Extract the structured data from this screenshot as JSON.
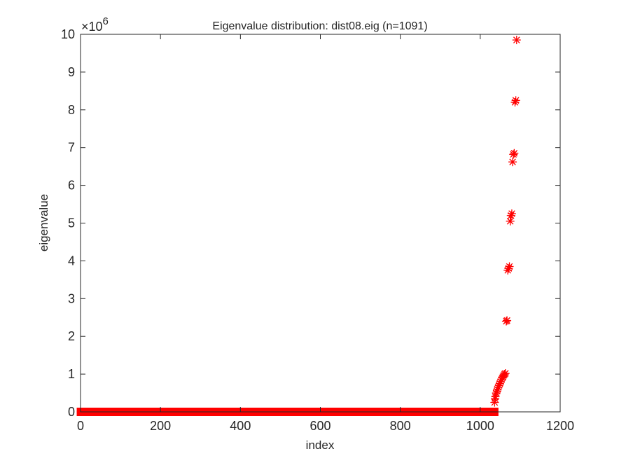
{
  "chart_data": {
    "type": "scatter",
    "title": "Eigenvalue distribution: dist08.eig (n=1091)",
    "xlabel": "index",
    "ylabel": "eigenvalue",
    "xlim": [
      0,
      1200
    ],
    "ylim": [
      0,
      10
    ],
    "x_ticks": [
      0,
      200,
      400,
      600,
      800,
      1000,
      1200
    ],
    "y_ticks": [
      0,
      1,
      2,
      3,
      4,
      5,
      6,
      7,
      8,
      9,
      10
    ],
    "y_multiplier_base": "×10",
    "y_multiplier_exponent": "6",
    "marker": "asterisk",
    "marker_color": "#ff0000",
    "grid": false,
    "series": [
      {
        "baseline": {
          "x_start": 1,
          "x_end": 1035,
          "y": 0
        },
        "points": [
          [
            1036,
            0.25
          ],
          [
            1037,
            0.35
          ],
          [
            1038,
            0.4
          ],
          [
            1040,
            0.5
          ],
          [
            1042,
            0.55
          ],
          [
            1043,
            0.6
          ],
          [
            1045,
            0.65
          ],
          [
            1047,
            0.7
          ],
          [
            1049,
            0.75
          ],
          [
            1051,
            0.8
          ],
          [
            1053,
            0.85
          ],
          [
            1055,
            0.9
          ],
          [
            1057,
            0.93
          ],
          [
            1059,
            0.97
          ],
          [
            1061,
            1.0
          ],
          [
            1063,
            1.02
          ],
          [
            1065,
            2.4
          ],
          [
            1067,
            2.42
          ],
          [
            1069,
            3.75
          ],
          [
            1071,
            3.8
          ],
          [
            1073,
            3.85
          ],
          [
            1075,
            5.05
          ],
          [
            1077,
            5.2
          ],
          [
            1079,
            5.25
          ],
          [
            1081,
            6.62
          ],
          [
            1083,
            6.82
          ],
          [
            1085,
            6.85
          ],
          [
            1087,
            8.2
          ],
          [
            1089,
            8.25
          ],
          [
            1091,
            9.85
          ]
        ]
      }
    ]
  }
}
